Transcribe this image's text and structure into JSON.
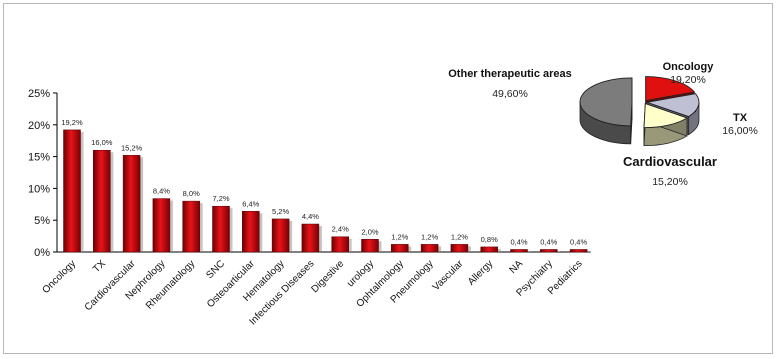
{
  "chart_data": [
    {
      "type": "bar",
      "categories": [
        "Oncology",
        "TX",
        "Cardiovascular",
        "Nephrology",
        "Rheumatology",
        "SNC",
        "Osteoarticular",
        "Hematology",
        "Infectious Diseases",
        "Digestive",
        "urology",
        "Ophtalmology",
        "Pneumology",
        "Vascular",
        "Allergy",
        "NA",
        "Psychiatry",
        "Pediatrics"
      ],
      "values": [
        19.2,
        16.0,
        15.2,
        8.4,
        8.0,
        7.2,
        6.4,
        5.2,
        4.4,
        2.4,
        2.0,
        1.2,
        1.2,
        1.2,
        0.8,
        0.4,
        0.4,
        0.4
      ],
      "value_labels": [
        "19,2%",
        "16,0%",
        "15,2%",
        "8,4%",
        "8,0%",
        "7,2%",
        "6,4%",
        "5,2%",
        "4,4%",
        "2,4%",
        "2,0%",
        "1,2%",
        "1,2%",
        "1,2%",
        "0,8%",
        "0,4%",
        "0,4%",
        "0,4%"
      ],
      "y_ticks": [
        "0%",
        "5%",
        "10%",
        "15%",
        "20%",
        "25%"
      ],
      "ylim": [
        0,
        25
      ],
      "grid": false,
      "color": "#c8161b"
    },
    {
      "type": "pie",
      "slices": [
        {
          "name": "Oncology",
          "value_label": "19,20%",
          "value": 19.2,
          "color": "#e01010"
        },
        {
          "name": "TX",
          "value_label": "16,00%",
          "value": 16.0,
          "color": "#c0c0d4"
        },
        {
          "name": "Cardiovascular",
          "value_label": "15,20%",
          "value": 15.2,
          "color": "#ffffcc"
        },
        {
          "name": "Other therapeutic areas",
          "value_label": "49,60%",
          "value": 49.6,
          "color": "#7c7c7c"
        }
      ]
    }
  ]
}
